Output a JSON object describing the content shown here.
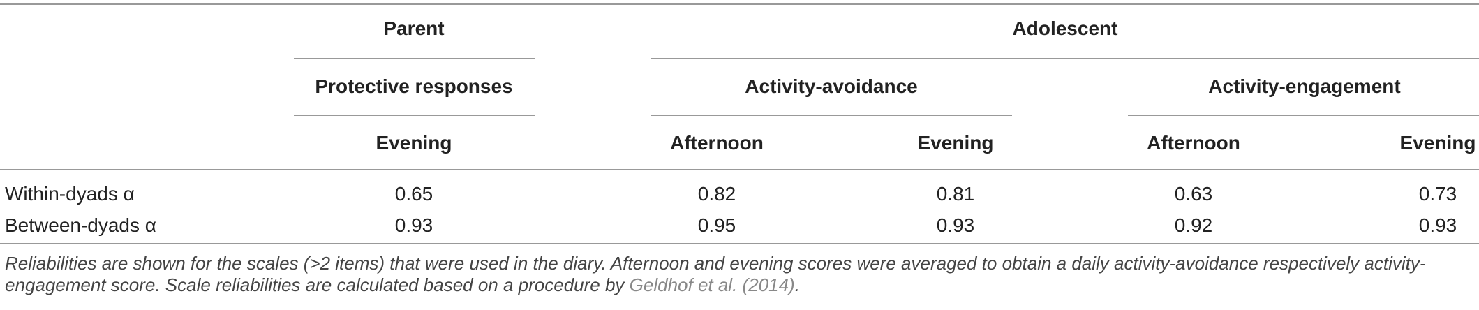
{
  "header": {
    "parent": "Parent",
    "adolescent": "Adolescent",
    "scales": [
      "Protective responses",
      "Activity-avoidance",
      "Activity-engagement"
    ],
    "times": [
      "Evening",
      "Afternoon",
      "Evening",
      "Afternoon",
      "Evening"
    ]
  },
  "table": {
    "rows": [
      {
        "label": "Within-dyads α",
        "values": [
          0.65,
          0.82,
          0.81,
          0.63,
          0.73
        ]
      },
      {
        "label": "Between-dyads α",
        "values": [
          0.93,
          0.95,
          0.93,
          0.92,
          0.93
        ]
      }
    ]
  },
  "note": {
    "text": "Reliabilities are shown for the scales (>2 items) that were used in the diary. Afternoon and evening scores were averaged to obtain a daily activity-avoidance respectively activity-engagement score. Scale reliabilities are calculated based on a procedure by ",
    "link": "Geldhof et al. (2014)",
    "end": "."
  }
}
